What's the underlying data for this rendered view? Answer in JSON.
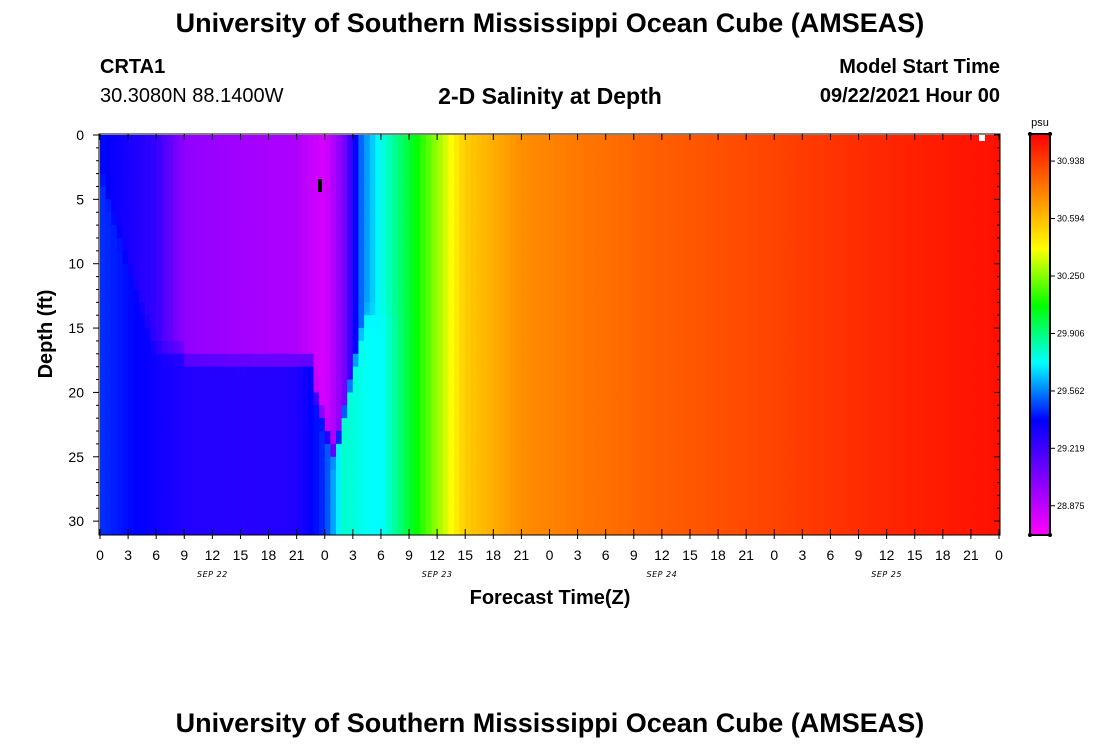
{
  "header": {
    "title": "University of Southern Mississippi Ocean Cube (AMSEAS)",
    "station_id": "CRTA1",
    "coords": "30.3080N  88.1400W",
    "chart_title": "2-D Salinity at Depth",
    "model_start_label": "Model Start Time",
    "model_start_value": "09/22/2021 Hour 00"
  },
  "footer": {
    "title": "University of Southern Mississippi Ocean Cube (AMSEAS)"
  },
  "chart_data": {
    "type": "heatmap",
    "xlabel": "Forecast Time(Z)",
    "ylabel": "Depth (ft)",
    "x_tick_labels": [
      "0",
      "3",
      "6",
      "9",
      "12",
      "15",
      "18",
      "21",
      "0",
      "3",
      "6",
      "9",
      "12",
      "15",
      "18",
      "21",
      "0",
      "3",
      "6",
      "9",
      "12",
      "15",
      "18",
      "21",
      "0",
      "3",
      "6",
      "9",
      "12",
      "15",
      "18",
      "21",
      "0"
    ],
    "x_range_hours": [
      0,
      96
    ],
    "date_labels": [
      {
        "text": "SEP 22",
        "hour": 12
      },
      {
        "text": "SEP 23",
        "hour": 36
      },
      {
        "text": "SEP 24",
        "hour": 60
      },
      {
        "text": "SEP 25",
        "hour": 84
      }
    ],
    "y_ticks": [
      0,
      5,
      10,
      15,
      20,
      25,
      30
    ],
    "y_range": [
      0,
      31
    ],
    "y_reversed": true,
    "colorbar": {
      "unit": "psu",
      "ticks": [
        "30.938",
        "30.594",
        "30.250",
        "29.906",
        "29.562",
        "29.219",
        "28.875"
      ],
      "min": 28.7,
      "max": 31.1,
      "colors": [
        "#ff00ff",
        "#8000ff",
        "#0000ff",
        "#00ffff",
        "#00ff00",
        "#ffff00",
        "#ff8000",
        "#ff0000"
      ]
    },
    "approx_values_by_hour": {
      "hours": [
        0,
        6,
        9,
        15,
        21,
        24,
        26,
        28,
        30,
        33,
        39,
        45,
        51,
        60,
        72,
        84,
        96
      ],
      "surface": [
        29.4,
        29.25,
        29.0,
        28.95,
        28.92,
        28.8,
        29.05,
        29.55,
        29.75,
        30.0,
        30.55,
        30.72,
        30.78,
        30.85,
        30.92,
        31.0,
        31.06
      ],
      "deep": [
        29.45,
        29.35,
        29.3,
        29.28,
        29.3,
        29.45,
        29.8,
        29.75,
        29.72,
        30.0,
        30.55,
        30.72,
        30.78,
        30.85,
        30.92,
        31.0,
        31.06
      ]
    }
  }
}
